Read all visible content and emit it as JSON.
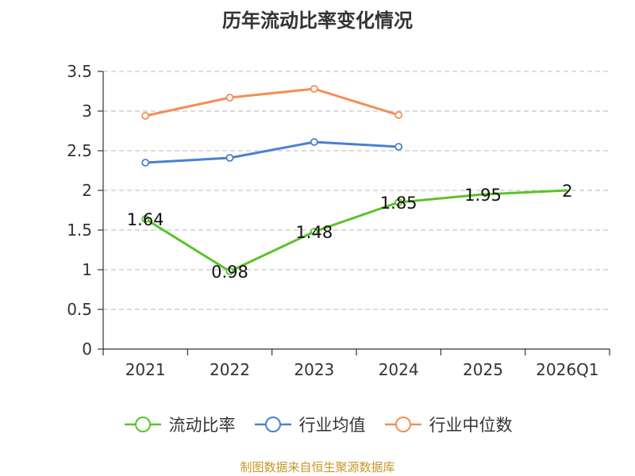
{
  "chart_data": {
    "type": "line",
    "title": "历年流动比率变化情况",
    "categories": [
      "2021",
      "2022",
      "2023",
      "2024",
      "2025",
      "2026Q1"
    ],
    "ylim": [
      0,
      3.5
    ],
    "yticks": [
      "0",
      "0.5",
      "1",
      "1.5",
      "2",
      "2.5",
      "3",
      "3.5"
    ],
    "grid": true,
    "legend_position": "bottom",
    "series": [
      {
        "name": "流动比率",
        "color": "#5bc22a",
        "values": [
          1.64,
          0.98,
          1.48,
          1.85,
          1.95,
          2
        ],
        "labels": [
          "1.64",
          "0.98",
          "1.48",
          "1.85",
          "1.95",
          "2"
        ],
        "markers": [
          true,
          true,
          true,
          true,
          false,
          false
        ]
      },
      {
        "name": "行业均值",
        "color": "#4a7fd6",
        "values": [
          2.35,
          2.41,
          2.61,
          2.55,
          null,
          null
        ],
        "markers": [
          true,
          true,
          true,
          true,
          false,
          false
        ]
      },
      {
        "name": "行业中位数",
        "color": "#f58d55",
        "values": [
          2.94,
          3.17,
          3.28,
          2.95,
          null,
          null
        ],
        "markers": [
          true,
          true,
          true,
          true,
          false,
          false
        ]
      }
    ]
  },
  "source": {
    "text": "制图数据来自恒生聚源数据库",
    "color": "#c8962a"
  }
}
